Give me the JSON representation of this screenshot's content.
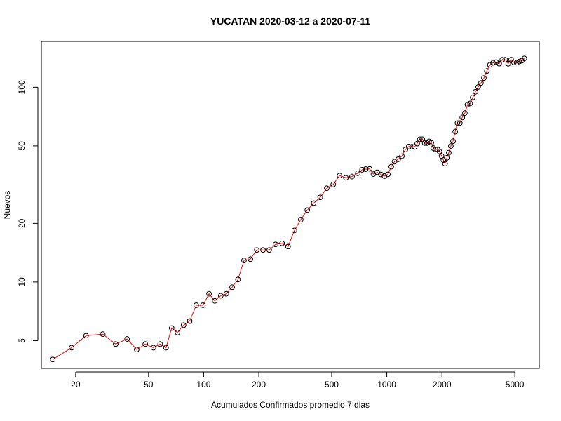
{
  "chart_data": {
    "type": "line",
    "title": "YUCATAN 2020-03-12 a 2020-07-11",
    "xlabel": "Acumulados Confirmados promedio  7  dias",
    "ylabel": "Nuevos",
    "x_scale": "log",
    "y_scale": "log",
    "xlim": [
      13,
      6800
    ],
    "ylim": [
      3.6,
      172
    ],
    "x_ticks": [
      20,
      50,
      100,
      200,
      500,
      1000,
      2000,
      5000
    ],
    "y_ticks": [
      5,
      10,
      20,
      50,
      100
    ],
    "grid": false,
    "line_color": "#ff0000",
    "marker_edge_color": "#000000",
    "marker_fill_color": "none",
    "series": [
      {
        "x": [
          15.0,
          19.0,
          22.8,
          28.1,
          33.1,
          38.2,
          43.1,
          48.0,
          53.2,
          57.9,
          62.3,
          66.9,
          72.0,
          77.7,
          83.9,
          91.1,
          99.1,
          107,
          115,
          124,
          133,
          143,
          154,
          166,
          180,
          195,
          211,
          228,
          247,
          268,
          289,
          313,
          339,
          368,
          399,
          433,
          470,
          510,
          552,
          598,
          646,
          694,
          733,
          767,
          806,
          845,
          886,
          928,
          971,
          1014,
          1058,
          1102,
          1154,
          1209,
          1264,
          1318,
          1372,
          1419,
          1466,
          1514,
          1563,
          1610,
          1658,
          1702,
          1750,
          1797,
          1845,
          1892,
          1940,
          1990,
          2037,
          2080,
          2127,
          2179,
          2237,
          2299,
          2363,
          2431,
          2506,
          2583,
          2668,
          2756,
          2851,
          2947,
          3049,
          3155,
          3268,
          3389,
          3519,
          3657,
          3801,
          3952,
          4107,
          4268,
          4432,
          4601,
          4773,
          4944,
          5115,
          5285,
          5459,
          5637
        ],
        "y": [
          4.0,
          4.6,
          5.3,
          5.4,
          4.8,
          5.1,
          4.5,
          4.8,
          4.6,
          4.8,
          4.6,
          5.8,
          5.5,
          6.0,
          6.3,
          7.6,
          7.6,
          8.7,
          8.0,
          8.5,
          8.7,
          9.4,
          10.3,
          12.9,
          13.1,
          14.6,
          14.6,
          14.6,
          15.6,
          15.8,
          15.2,
          18.4,
          20.9,
          23.4,
          25.4,
          27.2,
          30.3,
          31.7,
          35.2,
          34.3,
          34.8,
          36.2,
          37.7,
          38.0,
          38.1,
          35.8,
          36.6,
          35.7,
          35.0,
          35.7,
          39.1,
          41.5,
          42.7,
          44.3,
          47.9,
          49.6,
          49.5,
          49.4,
          51.4,
          54.1,
          54.1,
          51.7,
          51.7,
          52.7,
          51.9,
          48.7,
          47.9,
          48.0,
          46.8,
          44.4,
          42.3,
          40.5,
          43.4,
          46.1,
          49.9,
          52.8,
          59.2,
          65.5,
          65.5,
          70.0,
          73.7,
          81.3,
          82.6,
          88.7,
          94.8,
          100.3,
          105.2,
          111.5,
          121.2,
          130.4,
          133.6,
          134.6,
          132.2,
          138.5,
          138.5,
          132.1,
          138.6,
          134.3,
          133.9,
          135.5,
          136.9,
          140.6
        ]
      }
    ]
  }
}
